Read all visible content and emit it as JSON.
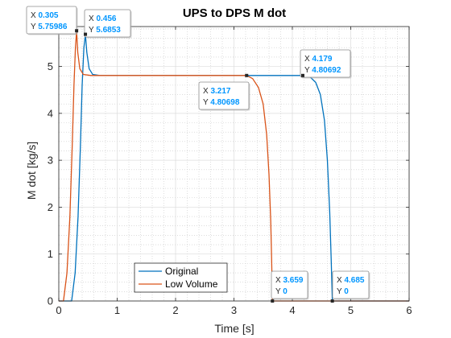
{
  "chart_data": {
    "type": "line",
    "title": "UPS to DPS M dot",
    "xlabel": "Time [s]",
    "ylabel": "M dot [kg/s]",
    "xlim": [
      0,
      6
    ],
    "ylim": [
      0,
      5.85
    ],
    "xticks": [
      "0",
      "1",
      "2",
      "3",
      "4",
      "5",
      "6"
    ],
    "yticks": [
      "0",
      "1",
      "2",
      "3",
      "4",
      "5"
    ],
    "grid": "major and minor",
    "legend_placement": "bottom-center",
    "colors": {
      "Original": "#0072bd",
      "Low Volume": "#d95319"
    },
    "series": [
      {
        "name": "Original",
        "x": [
          0,
          0.22,
          0.28,
          0.33,
          0.37,
          0.4,
          0.43,
          0.456,
          0.48,
          0.52,
          0.58,
          0.7,
          4.179,
          4.3,
          4.4,
          4.48,
          4.55,
          4.6,
          4.64,
          4.665,
          4.685,
          6
        ],
        "y": [
          0,
          0,
          0.6,
          1.8,
          3.3,
          4.6,
          5.4,
          5.6853,
          5.3,
          4.95,
          4.83,
          4.807,
          4.80692,
          4.78,
          4.66,
          4.4,
          3.85,
          3.0,
          1.9,
          0.9,
          0,
          0
        ]
      },
      {
        "name": "Low Volume",
        "x": [
          0,
          0.08,
          0.14,
          0.19,
          0.23,
          0.26,
          0.285,
          0.305,
          0.325,
          0.36,
          0.42,
          0.55,
          3.217,
          3.32,
          3.42,
          3.5,
          3.56,
          3.6,
          3.63,
          3.645,
          3.659,
          6
        ],
        "y": [
          0,
          0,
          0.6,
          1.8,
          3.3,
          4.6,
          5.4,
          5.75986,
          5.3,
          4.95,
          4.83,
          4.807,
          4.80698,
          4.74,
          4.55,
          4.2,
          3.55,
          2.7,
          1.7,
          0.9,
          0,
          0
        ]
      }
    ],
    "datatips": [
      {
        "x": 0.305,
        "y": 5.75986,
        "x_text": "0.305",
        "y_text": "5.75986"
      },
      {
        "x": 0.456,
        "y": 5.6853,
        "x_text": "0.456",
        "y_text": "5.6853"
      },
      {
        "x": 3.217,
        "y": 4.80698,
        "x_text": "3.217",
        "y_text": "4.80698"
      },
      {
        "x": 4.179,
        "y": 4.80692,
        "x_text": "4.179",
        "y_text": "4.80692"
      },
      {
        "x": 3.659,
        "y": 0,
        "x_text": "3.659",
        "y_text": "0"
      },
      {
        "x": 4.685,
        "y": 0,
        "x_text": "4.685",
        "y_text": "0"
      }
    ],
    "datatip_labels": {
      "x": "X",
      "y": "Y"
    }
  }
}
